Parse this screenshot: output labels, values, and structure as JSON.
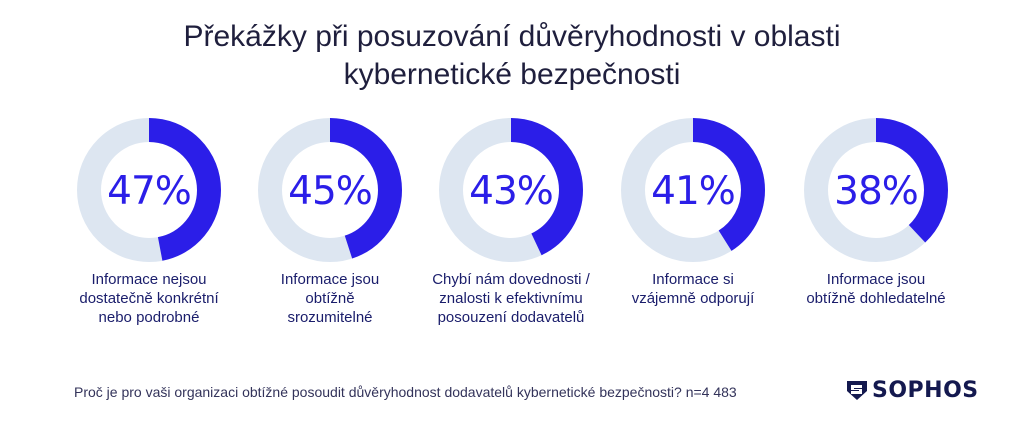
{
  "title_lines": [
    "Překážky při posuzování důvěryhodnosti v oblasti",
    "kybernetické bezpečnosti"
  ],
  "chart_data": {
    "type": "donut",
    "items": [
      {
        "value": 47,
        "display": "47%",
        "label_lines": [
          "Informace nejsou",
          "dostatečně konkrétní",
          "nebo podrobné"
        ]
      },
      {
        "value": 45,
        "display": "45%",
        "label_lines": [
          "Informace jsou",
          "obtížně",
          "srozumitelné"
        ]
      },
      {
        "value": 43,
        "display": "43%",
        "label_lines": [
          "Chybí nám dovednosti /",
          "znalosti k efektivnímu",
          "posouzení dodavatelů"
        ]
      },
      {
        "value": 41,
        "display": "41%",
        "label_lines": [
          "Informace si",
          "vzájemně odporují"
        ]
      },
      {
        "value": 38,
        "display": "38%",
        "label_lines": [
          "Informace jsou",
          "obtížně dohledatelné"
        ]
      }
    ],
    "max": 100,
    "colors": {
      "fill": "#2b1ee8",
      "track": "#dde6f1",
      "text": "#2b1ee8",
      "label": "#1a1d6b"
    }
  },
  "footnote": "Proč je pro vaši organizaci obtížné posoudit důvěryhodnost dodavatelů kybernetické bezpečnosti? n=4 483",
  "logo": {
    "text": "SOPHOS",
    "icon": "sophos-shield-icon",
    "color": "#14194f"
  }
}
